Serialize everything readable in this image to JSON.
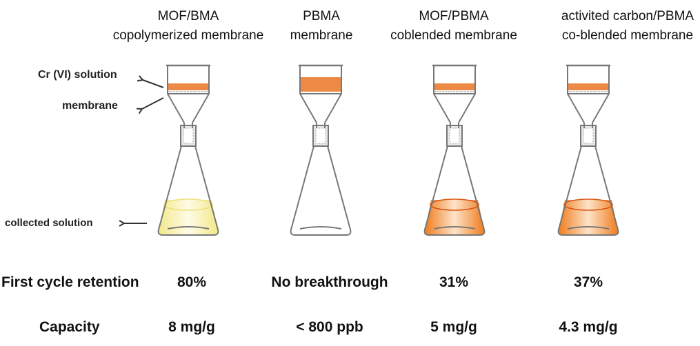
{
  "columns": [
    {
      "title_line1": "MOF/BMA",
      "title_line2": "copolymerized membrane",
      "retention": "80%",
      "capacity": "8 mg/g"
    },
    {
      "title_line1": "PBMA",
      "title_line2": "membrane",
      "retention": "No breakthrough",
      "capacity": "< 800 ppb"
    },
    {
      "title_line1": "MOF/PBMA",
      "title_line2": "coblended membrane",
      "retention": "31%",
      "capacity": "5 mg/g"
    },
    {
      "title_line1": "activited carbon/PBMA",
      "title_line2": "co-blended membrane",
      "retention": "37%",
      "capacity": "4.3 mg/g"
    }
  ],
  "labels": {
    "solution": "Cr (VI) solution",
    "membrane": "membrane",
    "collected": "collected solution"
  },
  "rows": {
    "retention": "First cycle retention",
    "capacity": "Capacity"
  },
  "colors": {
    "glass": "#777777",
    "cr_solution": "#ec8a45",
    "collected_yellow": "#f7f0a8",
    "collected_orange": "#f08a30"
  },
  "flasks": [
    {
      "collected": "yellow",
      "band": "thin",
      "membrane": true
    },
    {
      "collected": "none",
      "band": "thick",
      "membrane": false
    },
    {
      "collected": "orange",
      "band": "thin",
      "membrane": true
    },
    {
      "collected": "orange",
      "band": "thin",
      "membrane": true
    }
  ]
}
